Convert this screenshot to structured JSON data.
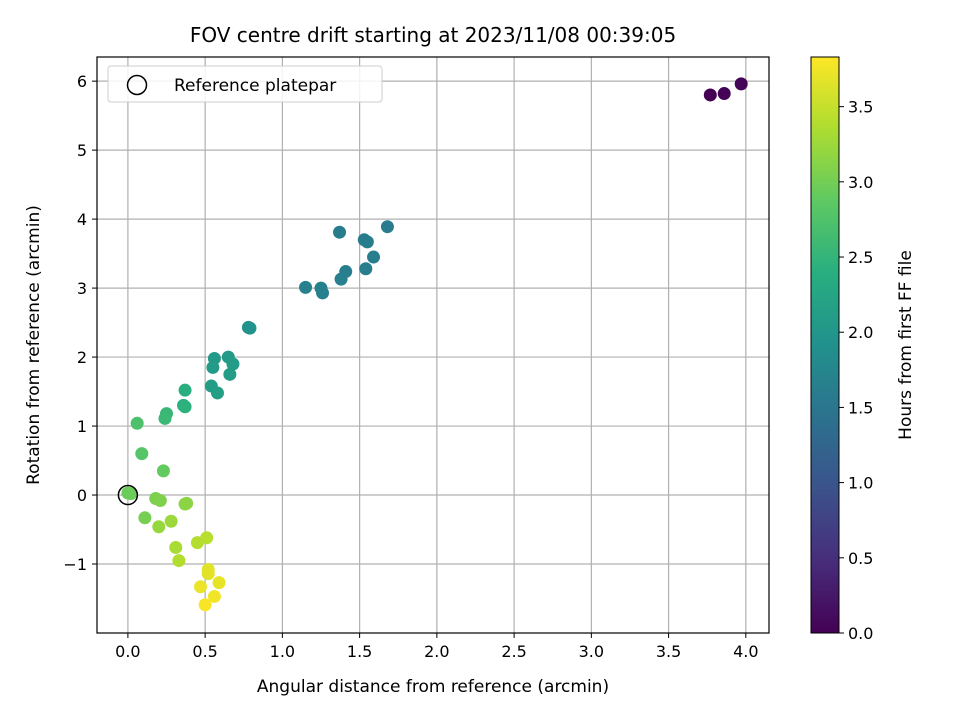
{
  "chart_data": {
    "type": "scatter",
    "title": "FOV centre drift starting at 2023/11/08 00:39:05",
    "xlabel": "Angular distance from reference (arcmin)",
    "ylabel": "Rotation from reference (arcmin)",
    "xlim": [
      -0.2,
      4.15
    ],
    "ylim": [
      -2.0,
      6.35
    ],
    "xticks": [
      0.0,
      0.5,
      1.0,
      1.5,
      2.0,
      2.5,
      3.0,
      3.5,
      4.0
    ],
    "xtick_labels": [
      "0.0",
      "0.5",
      "1.0",
      "1.5",
      "2.0",
      "2.5",
      "3.0",
      "3.5",
      "4.0"
    ],
    "yticks": [
      -1,
      0,
      1,
      2,
      3,
      4,
      5,
      6
    ],
    "ytick_labels": [
      "−1",
      "0",
      "1",
      "2",
      "3",
      "4",
      "5",
      "6"
    ],
    "grid": true,
    "legend": {
      "placement": "top-left",
      "label": "Reference platepar"
    },
    "reference_point": {
      "x": 0.0,
      "y": 0.0
    },
    "colorbar": {
      "label": "Hours from first FF file",
      "range": [
        0.0,
        3.83
      ],
      "colormap": "viridis",
      "ticks": [
        0.0,
        0.5,
        1.0,
        1.5,
        2.0,
        2.5,
        3.0,
        3.5
      ],
      "tick_labels": [
        "0.0",
        "0.5",
        "1.0",
        "1.5",
        "2.0",
        "2.5",
        "3.0",
        "3.5"
      ]
    },
    "points": [
      {
        "x": 3.77,
        "y": 5.8,
        "h": 0.0
      },
      {
        "x": 3.86,
        "y": 5.82,
        "h": 0.02
      },
      {
        "x": 3.97,
        "y": 5.96,
        "h": 0.04
      },
      {
        "x": 1.37,
        "y": 3.81,
        "h": 1.6
      },
      {
        "x": 1.53,
        "y": 3.7,
        "h": 1.6
      },
      {
        "x": 1.55,
        "y": 3.67,
        "h": 1.61
      },
      {
        "x": 1.68,
        "y": 3.89,
        "h": 1.58
      },
      {
        "x": 1.59,
        "y": 3.45,
        "h": 1.62
      },
      {
        "x": 1.41,
        "y": 3.24,
        "h": 1.62
      },
      {
        "x": 1.54,
        "y": 3.28,
        "h": 1.62
      },
      {
        "x": 1.38,
        "y": 3.13,
        "h": 1.63
      },
      {
        "x": 1.15,
        "y": 3.01,
        "h": 1.65
      },
      {
        "x": 1.25,
        "y": 3.0,
        "h": 1.65
      },
      {
        "x": 1.26,
        "y": 2.93,
        "h": 1.66
      },
      {
        "x": 0.78,
        "y": 2.43,
        "h": 1.92
      },
      {
        "x": 0.79,
        "y": 2.42,
        "h": 1.93
      },
      {
        "x": 0.56,
        "y": 1.98,
        "h": 2.05
      },
      {
        "x": 0.65,
        "y": 2.0,
        "h": 2.06
      },
      {
        "x": 0.55,
        "y": 1.85,
        "h": 2.08
      },
      {
        "x": 0.68,
        "y": 1.9,
        "h": 2.09
      },
      {
        "x": 0.66,
        "y": 1.75,
        "h": 2.1
      },
      {
        "x": 0.54,
        "y": 1.58,
        "h": 2.12
      },
      {
        "x": 0.58,
        "y": 1.48,
        "h": 2.14
      },
      {
        "x": 0.37,
        "y": 1.52,
        "h": 2.4
      },
      {
        "x": 0.36,
        "y": 1.3,
        "h": 2.42
      },
      {
        "x": 0.37,
        "y": 1.28,
        "h": 2.44
      },
      {
        "x": 0.25,
        "y": 1.18,
        "h": 2.55
      },
      {
        "x": 0.24,
        "y": 1.11,
        "h": 2.57
      },
      {
        "x": 0.06,
        "y": 1.04,
        "h": 2.72
      },
      {
        "x": 0.09,
        "y": 0.6,
        "h": 2.8
      },
      {
        "x": 0.23,
        "y": 0.35,
        "h": 2.9
      },
      {
        "x": 0.0,
        "y": 0.03,
        "h": 2.95
      },
      {
        "x": 0.02,
        "y": 0.02,
        "h": 2.96
      },
      {
        "x": 0.18,
        "y": -0.05,
        "h": 3.05
      },
      {
        "x": 0.21,
        "y": -0.08,
        "h": 3.07
      },
      {
        "x": 0.38,
        "y": -0.12,
        "h": 3.15
      },
      {
        "x": 0.37,
        "y": -0.13,
        "h": 3.16
      },
      {
        "x": 0.11,
        "y": -0.33,
        "h": 3.02
      },
      {
        "x": 0.2,
        "y": -0.46,
        "h": 3.22
      },
      {
        "x": 0.28,
        "y": -0.38,
        "h": 3.25
      },
      {
        "x": 0.31,
        "y": -0.76,
        "h": 3.32
      },
      {
        "x": 0.33,
        "y": -0.95,
        "h": 3.38
      },
      {
        "x": 0.45,
        "y": -0.69,
        "h": 3.4
      },
      {
        "x": 0.51,
        "y": -0.62,
        "h": 3.42
      },
      {
        "x": 0.52,
        "y": -1.08,
        "h": 3.65
      },
      {
        "x": 0.52,
        "y": -1.14,
        "h": 3.67
      },
      {
        "x": 0.59,
        "y": -1.27,
        "h": 3.7
      },
      {
        "x": 0.47,
        "y": -1.33,
        "h": 3.72
      },
      {
        "x": 0.56,
        "y": -1.47,
        "h": 3.75
      },
      {
        "x": 0.5,
        "y": -1.59,
        "h": 3.8
      }
    ]
  }
}
